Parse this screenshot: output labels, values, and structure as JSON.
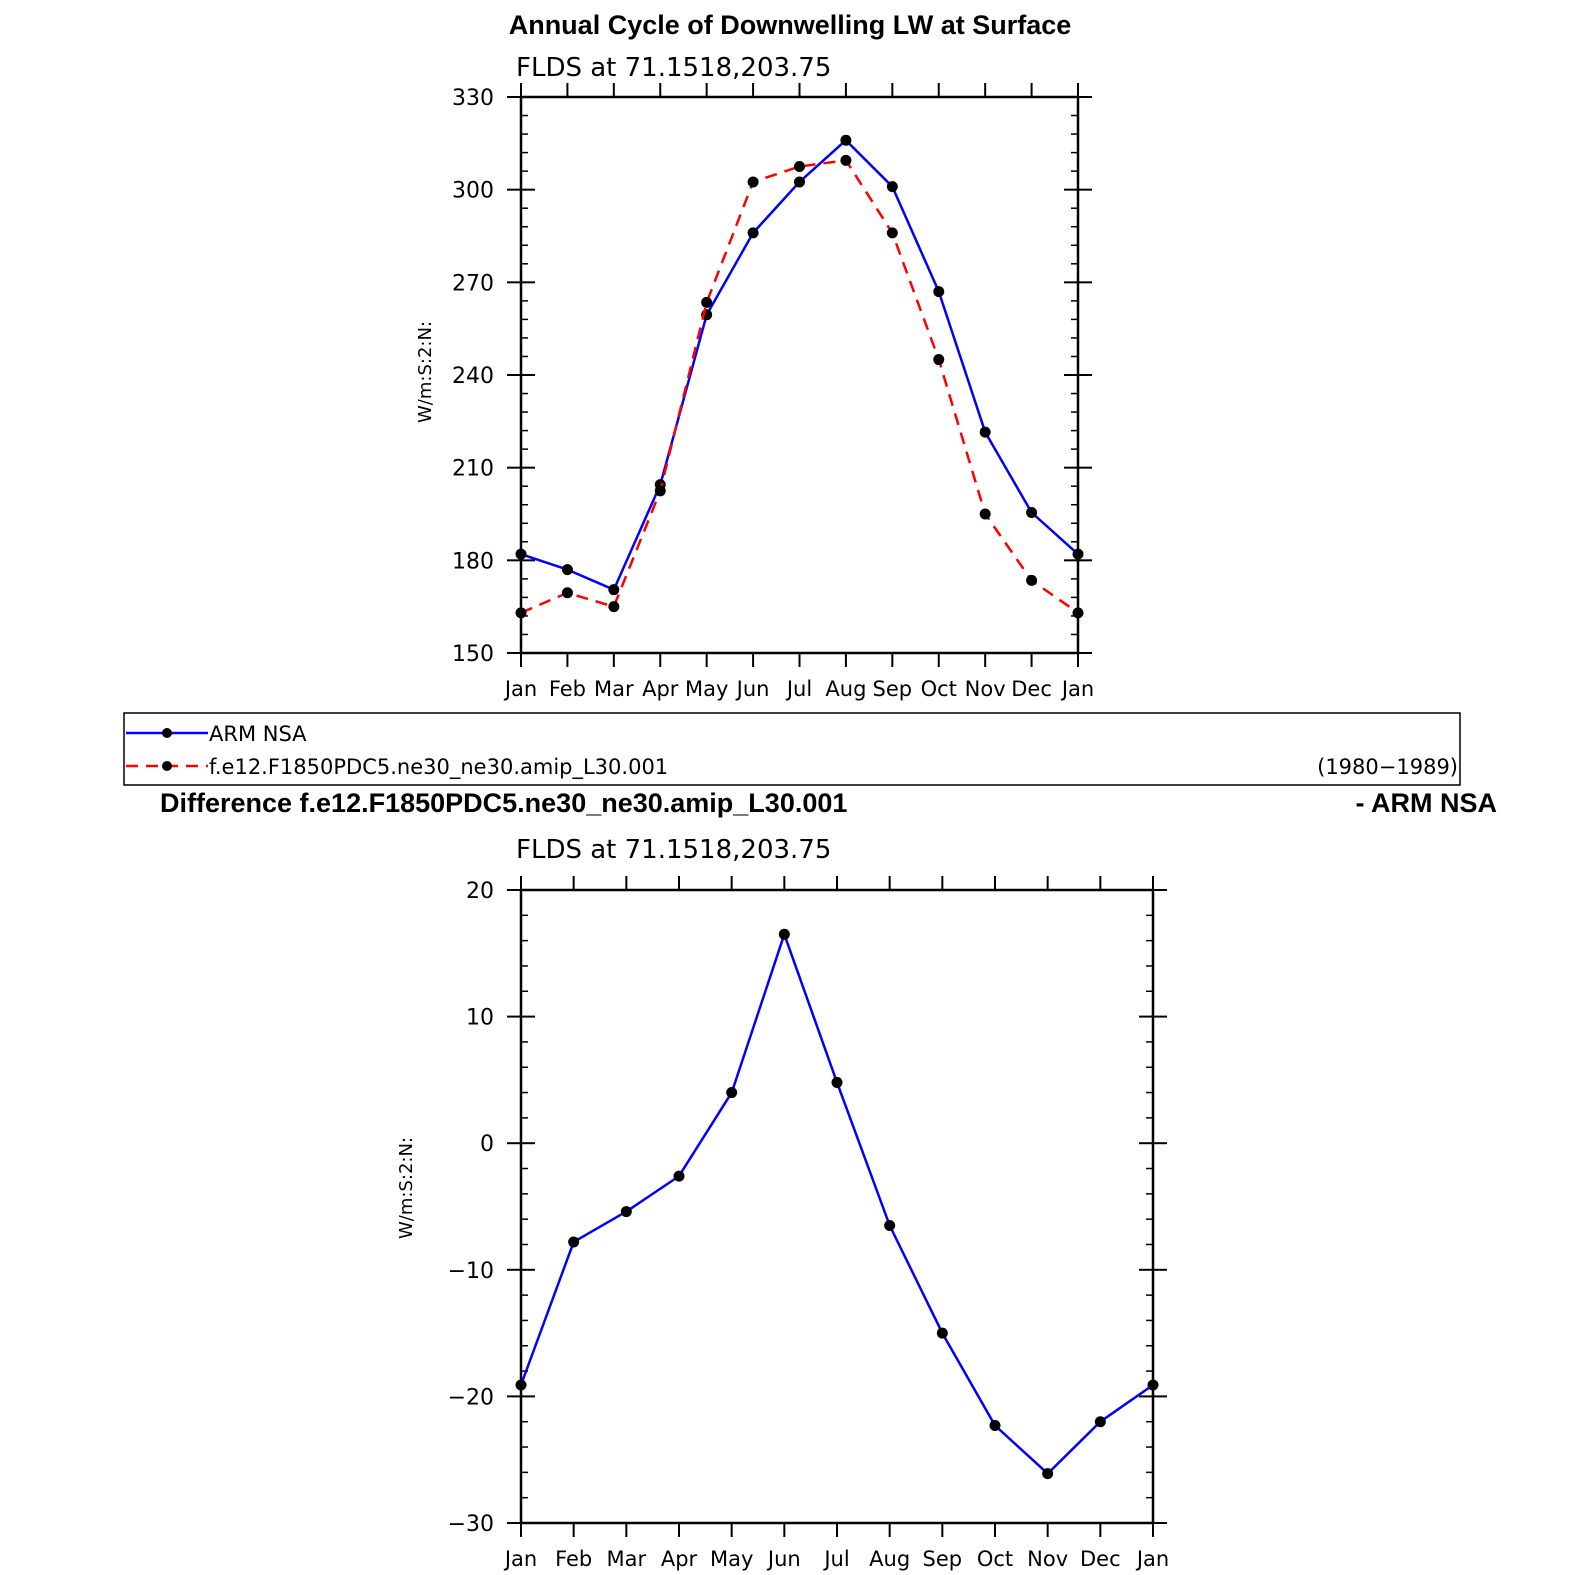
{
  "chart_data": [
    {
      "type": "line",
      "title": "Annual Cycle of Downwelling LW at Surface",
      "subtitle": "FLDS at 71.1518,203.75",
      "ylabel": "W/m:S:2:N:",
      "xlabel": "",
      "ylim": [
        150,
        330
      ],
      "yticks": [
        150,
        180,
        210,
        240,
        270,
        300,
        330
      ],
      "categories": [
        "Jan",
        "Feb",
        "Mar",
        "Apr",
        "May",
        "Jun",
        "Jul",
        "Aug",
        "Sep",
        "Oct",
        "Nov",
        "Dec",
        "Jan"
      ],
      "series": [
        {
          "name": "ARM NSA",
          "color": "#0000ff",
          "dash": "solid",
          "values": [
            182,
            177,
            170.5,
            204.5,
            259.5,
            286,
            302.5,
            316,
            301,
            267,
            221.5,
            195.5,
            182
          ]
        },
        {
          "name": "f.e12.F1850PDC5.ne30_ne30.amip_L30.001",
          "color": "#ff0000",
          "dash": "dashed",
          "values": [
            163,
            169.5,
            165,
            202.5,
            263.5,
            302.5,
            307.5,
            309.5,
            286,
            245,
            195,
            173.5,
            163
          ]
        }
      ],
      "legend": {
        "position": "below",
        "entries": [
          "ARM NSA",
          "f.e12.F1850PDC5.ne30_ne30.amip_L30.001"
        ],
        "period": "(1980−1989)"
      }
    },
    {
      "type": "line",
      "title": "Difference f.e12.F1850PDC5.ne30_ne30.amip_L30.001",
      "title_right": "- ARM NSA",
      "subtitle": "FLDS at 71.1518,203.75",
      "ylabel": "W/m:S:2:N:",
      "xlabel": "",
      "ylim": [
        -30,
        20
      ],
      "yticks": [
        -30,
        -20,
        -10,
        0,
        10,
        20
      ],
      "ytick_labels": [
        "−30",
        "−20",
        "−10",
        "0",
        "10",
        "20"
      ],
      "categories": [
        "Jan",
        "Feb",
        "Mar",
        "Apr",
        "May",
        "Jun",
        "Jul",
        "Aug",
        "Sep",
        "Oct",
        "Nov",
        "Dec",
        "Jan"
      ],
      "series": [
        {
          "color": "#0000ff",
          "dash": "solid",
          "values": [
            -19.1,
            -7.8,
            -5.4,
            -2.6,
            4.0,
            16.5,
            4.8,
            -6.5,
            -15.0,
            -22.3,
            -26.1,
            -22.0,
            -19.1
          ]
        }
      ]
    }
  ]
}
